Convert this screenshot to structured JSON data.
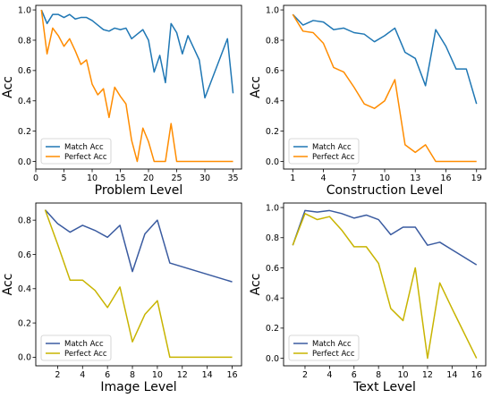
{
  "chart_data": [
    {
      "type": "line",
      "xlabel": "Problem Level",
      "ylabel": "Acc",
      "xlim": [
        0,
        36.5
      ],
      "ylim": [
        -0.05,
        1.03
      ],
      "xticks": [
        0,
        5,
        10,
        15,
        20,
        25,
        30,
        35
      ],
      "yticks": [
        0.0,
        0.2,
        0.4,
        0.6,
        0.8,
        1.0
      ],
      "legend": "lower-left",
      "series": [
        {
          "name": "Match Acc",
          "color": "#1f77b4",
          "x": [
            1,
            2,
            3,
            4,
            5,
            6,
            7,
            8,
            9,
            10,
            11,
            12,
            13,
            14,
            15,
            16,
            17,
            18,
            19,
            20,
            21,
            22,
            23,
            24,
            25,
            26,
            27,
            28,
            29,
            30,
            34,
            35
          ],
          "y": [
            1.0,
            0.91,
            0.97,
            0.97,
            0.95,
            0.97,
            0.94,
            0.95,
            0.95,
            0.93,
            0.9,
            0.87,
            0.86,
            0.88,
            0.87,
            0.88,
            0.81,
            0.84,
            0.87,
            0.8,
            0.59,
            0.7,
            0.52,
            0.91,
            0.85,
            0.71,
            0.83,
            0.75,
            0.67,
            0.42,
            0.81,
            0.45
          ]
        },
        {
          "name": "Perfect Acc",
          "color": "#ff8c00",
          "x": [
            1,
            2,
            3,
            4,
            5,
            6,
            7,
            8,
            9,
            10,
            11,
            12,
            13,
            14,
            15,
            16,
            17,
            18,
            19,
            20,
            21,
            22,
            23,
            24,
            25,
            26,
            27,
            28,
            29,
            30,
            34,
            35
          ],
          "y": [
            1.0,
            0.71,
            0.88,
            0.83,
            0.76,
            0.81,
            0.73,
            0.64,
            0.67,
            0.51,
            0.44,
            0.48,
            0.29,
            0.49,
            0.43,
            0.38,
            0.14,
            0.0,
            0.22,
            0.13,
            0.0,
            0.0,
            0.0,
            0.25,
            0.0,
            0.0,
            0.0,
            0.0,
            0.0,
            0.0,
            0.0,
            0.0
          ]
        }
      ]
    },
    {
      "type": "line",
      "xlabel": "Construction Level",
      "ylabel": "Acc",
      "xlim": [
        0.1,
        19.9
      ],
      "ylim": [
        -0.05,
        1.03
      ],
      "xticks": [
        1,
        4,
        7,
        10,
        13,
        16,
        19
      ],
      "yticks": [
        0.0,
        0.2,
        0.4,
        0.6,
        0.8,
        1.0
      ],
      "legend": "lower-left",
      "series": [
        {
          "name": "Match Acc",
          "color": "#1f77b4",
          "x": [
            1,
            2,
            3,
            4,
            5,
            6,
            7,
            8,
            9,
            10,
            11,
            12,
            13,
            14,
            15,
            16,
            17,
            18,
            19
          ],
          "y": [
            0.97,
            0.9,
            0.93,
            0.92,
            0.87,
            0.88,
            0.85,
            0.84,
            0.79,
            0.83,
            0.88,
            0.72,
            0.68,
            0.5,
            0.87,
            0.76,
            0.61,
            0.61,
            0.38
          ]
        },
        {
          "name": "Perfect Acc",
          "color": "#ff8c00",
          "x": [
            1,
            2,
            3,
            4,
            5,
            6,
            7,
            8,
            9,
            10,
            11,
            12,
            13,
            14,
            15,
            16,
            17,
            18,
            19
          ],
          "y": [
            0.97,
            0.86,
            0.85,
            0.78,
            0.62,
            0.59,
            0.49,
            0.38,
            0.35,
            0.4,
            0.54,
            0.11,
            0.06,
            0.11,
            0.0,
            0.0,
            0.0,
            0.0,
            0.0
          ]
        }
      ]
    },
    {
      "type": "line",
      "xlabel": "Image Level",
      "ylabel": "Acc",
      "xlim": [
        0.25,
        16.75
      ],
      "ylim": [
        -0.05,
        0.9
      ],
      "xticks": [
        2,
        4,
        6,
        8,
        10,
        12,
        14,
        16
      ],
      "yticks": [
        0.0,
        0.2,
        0.4,
        0.6,
        0.8
      ],
      "legend": "lower-left",
      "series": [
        {
          "name": "Match Acc",
          "color": "#3a5ba0",
          "x": [
            1,
            2,
            3,
            4,
            5,
            6,
            7,
            8,
            9,
            10,
            11,
            16
          ],
          "y": [
            0.86,
            0.78,
            0.73,
            0.77,
            0.74,
            0.7,
            0.77,
            0.5,
            0.72,
            0.8,
            0.55,
            0.44
          ]
        },
        {
          "name": "Perfect Acc",
          "color": "#c8b400",
          "x": [
            1,
            2,
            3,
            4,
            5,
            6,
            7,
            8,
            9,
            10,
            11,
            16
          ],
          "y": [
            0.86,
            0.66,
            0.45,
            0.45,
            0.39,
            0.29,
            0.41,
            0.09,
            0.25,
            0.33,
            0.0,
            0.0
          ]
        }
      ]
    },
    {
      "type": "line",
      "xlabel": "Text Level",
      "ylabel": "Acc",
      "xlim": [
        0.25,
        16.75
      ],
      "ylim": [
        -0.05,
        1.03
      ],
      "xticks": [
        2,
        4,
        6,
        8,
        10,
        12,
        14,
        16
      ],
      "yticks": [
        0.0,
        0.2,
        0.4,
        0.6,
        0.8,
        1.0
      ],
      "legend": "lower-left",
      "series": [
        {
          "name": "Match Acc",
          "color": "#3a5ba0",
          "x": [
            1,
            2,
            3,
            4,
            5,
            6,
            7,
            8,
            9,
            10,
            11,
            12,
            13,
            14,
            16
          ],
          "y": [
            0.75,
            0.98,
            0.97,
            0.98,
            0.96,
            0.93,
            0.95,
            0.92,
            0.82,
            0.87,
            0.87,
            0.75,
            0.77,
            0.72,
            0.62
          ]
        },
        {
          "name": "Perfect Acc",
          "color": "#c8b400",
          "x": [
            1,
            2,
            3,
            4,
            5,
            6,
            7,
            8,
            9,
            10,
            11,
            12,
            13,
            14,
            16
          ],
          "y": [
            0.75,
            0.96,
            0.92,
            0.94,
            0.85,
            0.74,
            0.74,
            0.63,
            0.33,
            0.25,
            0.6,
            0.0,
            0.5,
            0.33,
            0.0
          ]
        }
      ]
    }
  ]
}
